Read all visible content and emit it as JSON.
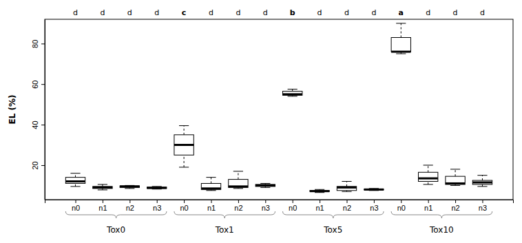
{
  "chart_data": {
    "type": "box",
    "y_label": "EL (%)",
    "categories": [
      "n0",
      "n1",
      "n2",
      "n3",
      "n0",
      "n1",
      "n2",
      "n3",
      "n0",
      "n1",
      "n2",
      "n3",
      "n0",
      "n1",
      "n2",
      "n3"
    ],
    "groups": [
      "Tox0",
      "Tox1",
      "Tox5",
      "Tox10"
    ],
    "annotations": [
      "d",
      "d",
      "d",
      "d",
      "c",
      "d",
      "d",
      "d",
      "b",
      "d",
      "d",
      "d",
      "a",
      "d",
      "d",
      "d"
    ],
    "low": [
      9.5,
      7.8,
      8.5,
      8.2,
      19,
      7.5,
      8.5,
      9,
      54,
      6.5,
      7,
      7.5,
      75,
      10.5,
      10,
      9.5
    ],
    "q1": [
      11,
      8.5,
      9,
      8.5,
      25,
      8,
      9,
      9.5,
      54.5,
      7,
      7.5,
      7.8,
      76,
      12,
      10.5,
      10.5
    ],
    "median": [
      12,
      9,
      9.5,
      8.8,
      30,
      8.5,
      9.5,
      10,
      55,
      7.2,
      9,
      8,
      76,
      13.5,
      11,
      11.5
    ],
    "q3": [
      14,
      9.5,
      9.8,
      9.2,
      35,
      11,
      13,
      10.5,
      56.5,
      7.5,
      9.5,
      8.2,
      83,
      16.5,
      14.5,
      12.5
    ],
    "high": [
      16,
      10.5,
      10,
      9.5,
      39.5,
      14,
      17,
      11,
      57.5,
      8,
      12,
      8.5,
      90,
      20,
      18,
      15
    ],
    "color": "#000000",
    "ylim": [
      3,
      92
    ],
    "yticks": [
      20,
      40,
      60,
      80
    ]
  }
}
